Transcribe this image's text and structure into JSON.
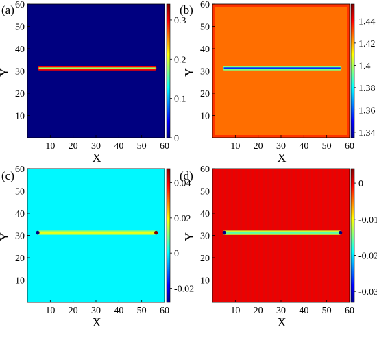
{
  "chart_data": [
    {
      "type": "heatmap",
      "panel_label": "(a)",
      "xlabel": "X",
      "ylabel": "Y",
      "xlim": [
        0,
        60
      ],
      "ylim": [
        0,
        60
      ],
      "xticks": [
        10,
        20,
        30,
        40,
        50,
        60
      ],
      "yticks": [
        10,
        20,
        30,
        40,
        50,
        60
      ],
      "colorbar": {
        "range": [
          0,
          0.34
        ],
        "ticks": [
          0,
          0.1,
          0.2,
          0.3
        ],
        "tick_labels": [
          "0",
          "0.1",
          "0.2",
          "0.3"
        ]
      },
      "background_value": 0,
      "features": [
        {
          "kind": "strip",
          "x_from": 4.5,
          "x_to": 56.5,
          "y": 31.2,
          "edge_value": 0.3,
          "center_value": 0.18
        }
      ]
    },
    {
      "type": "heatmap",
      "panel_label": "(b)",
      "xlabel": "X",
      "ylabel": "Y",
      "xlim": [
        0,
        60
      ],
      "ylim": [
        0,
        60
      ],
      "xticks": [
        10,
        20,
        30,
        40,
        50,
        60
      ],
      "yticks": [
        10,
        20,
        30,
        40,
        50,
        60
      ],
      "colorbar": {
        "range": [
          1.335,
          1.455
        ],
        "ticks": [
          1.34,
          1.36,
          1.38,
          1.4,
          1.42,
          1.44
        ],
        "tick_labels": [
          "1.34",
          "1.36",
          "1.38",
          "1.4",
          "1.42",
          "1.44"
        ]
      },
      "background_value": 1.427,
      "border_value": 1.434,
      "features": [
        {
          "kind": "strip",
          "x_from": 4.5,
          "x_to": 56.5,
          "y": 31.2,
          "edge_value": 1.395,
          "center_value": 1.355
        }
      ]
    },
    {
      "type": "heatmap",
      "panel_label": "(c)",
      "xlabel": "X",
      "ylabel": "Y",
      "xlim": [
        0,
        60
      ],
      "ylim": [
        0,
        60
      ],
      "xticks": [
        10,
        20,
        30,
        40,
        50,
        60
      ],
      "yticks": [
        10,
        20,
        30,
        40,
        50,
        60
      ],
      "colorbar": {
        "range": [
          -0.028,
          0.048
        ],
        "ticks": [
          -0.02,
          0,
          0.02,
          0.04
        ],
        "tick_labels": [
          "-0.02",
          "0",
          "0.02",
          "0.04"
        ]
      },
      "background_value": 0,
      "features": [
        {
          "kind": "strip",
          "x_from": 4.5,
          "x_to": 56.5,
          "y": 31.2,
          "edge_value": 0.012,
          "center_value": 0.018
        },
        {
          "kind": "spot",
          "x": 4.5,
          "y": 31.2,
          "value": -0.028
        },
        {
          "kind": "spot",
          "x": 56.3,
          "y": 31.2,
          "value": 0.048
        }
      ]
    },
    {
      "type": "heatmap",
      "panel_label": "(d)",
      "xlabel": "X",
      "ylabel": "Y",
      "xlim": [
        0,
        60
      ],
      "ylim": [
        0,
        60
      ],
      "xticks": [
        10,
        20,
        30,
        40,
        50,
        60
      ],
      "yticks": [
        10,
        20,
        30,
        40,
        50,
        60
      ],
      "colorbar": {
        "range": [
          -0.033,
          0.004
        ],
        "ticks": [
          -0.03,
          -0.02,
          -0.01,
          0
        ],
        "tick_labels": [
          "-0.03",
          "-0.02",
          "-0.01",
          "0"
        ]
      },
      "background_value": 0.0,
      "features": [
        {
          "kind": "strip",
          "x_from": 4.5,
          "x_to": 56.5,
          "y": 31.2,
          "edge_value": -0.012,
          "center_value": -0.016
        },
        {
          "kind": "spot",
          "x": 5.2,
          "y": 31.2,
          "value": -0.033
        },
        {
          "kind": "spot",
          "x": 56.0,
          "y": 31.2,
          "value": -0.033
        }
      ]
    }
  ]
}
